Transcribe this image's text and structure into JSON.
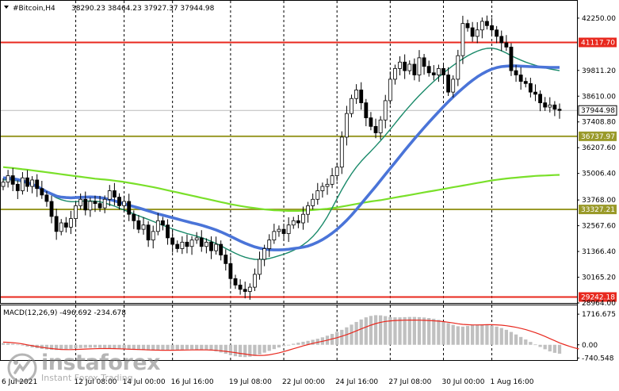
{
  "header": {
    "symbol": "#Bitcoin,H4",
    "ohlc": "38290.23 38464.23 37927.37 37944.98"
  },
  "price_axis": {
    "ticks": [
      "42250.00",
      "41117.70",
      "39811.20",
      "38610.00",
      "37944.98",
      "37408.80",
      "36737.97",
      "36207.60",
      "35006.40",
      "33768.00",
      "33327.21",
      "32567.60",
      "31366.40",
      "30165.20",
      "29242.18",
      "28964.00"
    ]
  },
  "levels": [
    {
      "value": 41117.7,
      "label": "41117.70",
      "color": "#e8281e"
    },
    {
      "value": 36737.97,
      "label": "36737.97",
      "color": "#9a9a2a"
    },
    {
      "value": 33327.21,
      "label": "33327.21",
      "color": "#9a9a2a"
    },
    {
      "value": 29242.18,
      "label": "29242.18",
      "color": "#e8281e"
    }
  ],
  "current_price": {
    "value": 37944.98,
    "label": "37944.98",
    "color": "#555555"
  },
  "time_axis": {
    "labels": [
      "6 Jul 2021",
      "12 Jul 08:00",
      "14 Jul 00:00",
      "16 Jul 16:00",
      "19 Jul 08:00",
      "22 Jul 00:00",
      "24 Jul 16:00",
      "27 Jul 08:00",
      "30 Jul 00:00",
      "1 Aug 16:00"
    ]
  },
  "macd": {
    "label": "MACD(12,26,9) -496.692 -234.678",
    "ticks": [
      "1716.675",
      "0.00",
      "-740.548"
    ],
    "hist_color": "#c0c0c0",
    "signal_color": "#e8281e"
  },
  "indicator_colors": {
    "ma_blue": "#4a74d8",
    "ma_teal": "#1a8a6a",
    "ma_green": "#7ae02a",
    "candles": "#000000"
  },
  "watermark": {
    "name": "instaforex",
    "tagline": "Instant Forex Trading"
  },
  "chart_data": {
    "type": "candlestick",
    "symbol": "#Bitcoin,H4",
    "y_range": [
      28964,
      42800
    ],
    "macd_range": [
      -900,
      1900
    ],
    "x_index_range": [
      0,
      119
    ],
    "x_labels": [
      {
        "i": 0,
        "label": "6 Jul 2021"
      },
      {
        "i": 15,
        "label": "12 Jul 08:00"
      },
      {
        "i": 25,
        "label": "14 Jul 00:00"
      },
      {
        "i": 35,
        "label": "16 Jul 16:00"
      },
      {
        "i": 47,
        "label": "19 Jul 08:00"
      },
      {
        "i": 58,
        "label": "22 Jul 00:00"
      },
      {
        "i": 69,
        "label": "24 Jul 16:00"
      },
      {
        "i": 80,
        "label": "27 Jul 08:00"
      },
      {
        "i": 91,
        "label": "30 Jul 00:00"
      },
      {
        "i": 101,
        "label": "1 Aug 16:00"
      }
    ],
    "close": [
      34600,
      34900,
      34500,
      34200,
      34800,
      34400,
      34700,
      34300,
      34000,
      33700,
      33000,
      32300,
      32700,
      32500,
      32900,
      33500,
      33800,
      33300,
      33700,
      33600,
      33400,
      33800,
      34200,
      33900,
      33500,
      33700,
      33100,
      32800,
      32400,
      32600,
      31900,
      32300,
      32800,
      32600,
      32000,
      31700,
      31500,
      31800,
      31600,
      31900,
      32000,
      31600,
      31800,
      31400,
      31700,
      31200,
      30800,
      30100,
      29800,
      29600,
      29500,
      29700,
      30300,
      31000,
      31500,
      31900,
      32300,
      32400,
      32200,
      32600,
      32800,
      32700,
      33100,
      33500,
      33800,
      34200,
      34400,
      34500,
      34900,
      35300,
      36700,
      37800,
      38500,
      38900,
      38300,
      37600,
      37200,
      36900,
      37500,
      38400,
      39400,
      39900,
      40200,
      39800,
      40100,
      39600,
      40400,
      40000,
      39700,
      39600,
      39900,
      39600,
      38800,
      39400,
      40500,
      42000,
      41800,
      41400,
      41700,
      42100,
      41900,
      41700,
      41400,
      41100,
      40900,
      39800,
      39600,
      39300,
      39200,
      38800,
      38700,
      38300,
      38100,
      38200,
      38000,
      37944.98
    ],
    "ma_green": [
      35300,
      35280,
      35260,
      35230,
      35200,
      35180,
      35150,
      35120,
      35090,
      35060,
      35030,
      35000,
      34970,
      34940,
      34910,
      34880,
      34850,
      34820,
      34790,
      34760,
      34740,
      34720,
      34700,
      34670,
      34640,
      34610,
      34570,
      34530,
      34490,
      34450,
      34410,
      34370,
      34320,
      34270,
      34220,
      34170,
      34120,
      34070,
      34020,
      33970,
      33920,
      33870,
      33820,
      33770,
      33720,
      33670,
      33620,
      33570,
      33530,
      33490,
      33450,
      33420,
      33390,
      33360,
      33330,
      33310,
      33290,
      33280,
      33270,
      33260,
      33260,
      33260,
      33270,
      33280,
      33300,
      33320,
      33340,
      33360,
      33390,
      33420,
      33460,
      33500,
      33540,
      33580,
      33620,
      33660,
      33700,
      33730,
      33760,
      33800,
      33840,
      33880,
      33920,
      33960,
      34000,
      34040,
      34080,
      34120,
      34160,
      34200,
      34240,
      34280,
      34320,
      34360,
      34400,
      34440,
      34480,
      34520,
      34560,
      34600,
      34640,
      34680,
      34710,
      34740,
      34770,
      34790,
      34810,
      34830,
      34850,
      34870,
      34890,
      34900,
      34910,
      34920,
      34930,
      34940
    ],
    "ma_blue": [
      34800,
      34780,
      34760,
      34720,
      34660,
      34580,
      34500,
      34400,
      34280,
      34150,
      34050,
      33950,
      33900,
      33880,
      33870,
      33880,
      33890,
      33900,
      33910,
      33900,
      33880,
      33840,
      33790,
      33730,
      33660,
      33590,
      33520,
      33460,
      33400,
      33330,
      33260,
      33190,
      33120,
      33060,
      33000,
      32940,
      32880,
      32820,
      32760,
      32700,
      32650,
      32590,
      32520,
      32450,
      32370,
      32280,
      32180,
      32070,
      31960,
      31850,
      31750,
      31660,
      31580,
      31520,
      31480,
      31450,
      31440,
      31440,
      31450,
      31470,
      31500,
      31530,
      31570,
      31620,
      31700,
      31800,
      31920,
      32060,
      32220,
      32400,
      32600,
      32820,
      33060,
      33320,
      33590,
      33860,
      34130,
      34400,
      34680,
      34960,
      35240,
      35520,
      35800,
      36080,
      36350,
      36620,
      36880,
      37140,
      37390,
      37640,
      37880,
      38120,
      38350,
      38570,
      38780,
      38980,
      39170,
      39350,
      39510,
      39650,
      39770,
      39870,
      39940,
      39990,
      40010,
      40020,
      40020,
      40010,
      40000,
      39990,
      39980,
      39970,
      39960,
      39950,
      39950,
      39950
    ],
    "ma_teal": [
      34700,
      34720,
      34700,
      34660,
      34600,
      34540,
      34470,
      34380,
      34270,
      34140,
      34010,
      33870,
      33780,
      33720,
      33690,
      33690,
      33710,
      33720,
      33720,
      33710,
      33680,
      33630,
      33560,
      33480,
      33390,
      33300,
      33210,
      33120,
      33030,
      32950,
      32860,
      32770,
      32680,
      32590,
      32500,
      32420,
      32340,
      32270,
      32200,
      32140,
      32080,
      32010,
      31930,
      31840,
      31740,
      31630,
      31510,
      31390,
      31280,
      31180,
      31100,
      31040,
      31000,
      30990,
      31000,
      31040,
      31100,
      31170,
      31240,
      31320,
      31420,
      31540,
      31680,
      31850,
      32060,
      32320,
      32630,
      32990,
      33400,
      33830,
      34250,
      34640,
      34990,
      35300,
      35570,
      35810,
      36040,
      36280,
      36530,
      36790,
      37060,
      37340,
      37620,
      37890,
      38150,
      38400,
      38640,
      38870,
      39090,
      39300,
      39500,
      39690,
      39870,
      40040,
      40200,
      40350,
      40490,
      40610,
      40710,
      40790,
      40840,
      40850,
      40810,
      40730,
      40620,
      40500,
      40390,
      40290,
      40200,
      40120,
      40050,
      39990,
      39930,
      39880,
      39840,
      39800
    ],
    "macd_hist": [
      100,
      80,
      60,
      20,
      -40,
      -100,
      -150,
      -190,
      -230,
      -260,
      -280,
      -290,
      -280,
      -260,
      -230,
      -200,
      -180,
      -170,
      -160,
      -160,
      -170,
      -180,
      -200,
      -220,
      -240,
      -260,
      -270,
      -280,
      -290,
      -300,
      -310,
      -320,
      -320,
      -310,
      -300,
      -290,
      -280,
      -270,
      -260,
      -260,
      -260,
      -270,
      -290,
      -320,
      -370,
      -430,
      -500,
      -580,
      -640,
      -680,
      -690,
      -670,
      -620,
      -540,
      -440,
      -340,
      -240,
      -150,
      -70,
      0,
      60,
      120,
      170,
      220,
      280,
      340,
      420,
      510,
      610,
      720,
      840,
      980,
      1130,
      1280,
      1420,
      1540,
      1620,
      1660,
      1650,
      1610,
      1560,
      1540,
      1540,
      1550,
      1560,
      1560,
      1550,
      1530,
      1500,
      1460,
      1400,
      1320,
      1220,
      1120,
      1040,
      1020,
      1060,
      1100,
      1130,
      1140,
      1120,
      1080,
      1020,
      940,
      840,
      720,
      580,
      440,
      300,
      160,
      20,
      -120,
      -250,
      -370,
      -450,
      -497
    ],
    "macd_signal": [
      150,
      140,
      120,
      90,
      50,
      0,
      -50,
      -100,
      -140,
      -180,
      -210,
      -240,
      -260,
      -270,
      -270,
      -260,
      -250,
      -240,
      -230,
      -220,
      -210,
      -210,
      -210,
      -215,
      -225,
      -235,
      -245,
      -255,
      -265,
      -275,
      -285,
      -295,
      -300,
      -305,
      -305,
      -305,
      -300,
      -295,
      -290,
      -285,
      -280,
      -280,
      -285,
      -295,
      -310,
      -335,
      -365,
      -400,
      -440,
      -480,
      -520,
      -560,
      -590,
      -600,
      -590,
      -560,
      -510,
      -450,
      -380,
      -300,
      -220,
      -140,
      -60,
      10,
      80,
      140,
      200,
      260,
      330,
      400,
      480,
      570,
      670,
      780,
      890,
      1000,
      1100,
      1190,
      1260,
      1310,
      1340,
      1360,
      1370,
      1380,
      1385,
      1385,
      1380,
      1370,
      1360,
      1345,
      1325,
      1300,
      1265,
      1225,
      1180,
      1145,
      1125,
      1115,
      1115,
      1120,
      1125,
      1125,
      1120,
      1100,
      1070,
      1030,
      980,
      920,
      850,
      770,
      680,
      580,
      470,
      350,
      230,
      110,
      10,
      -80,
      -160,
      -235
    ]
  }
}
